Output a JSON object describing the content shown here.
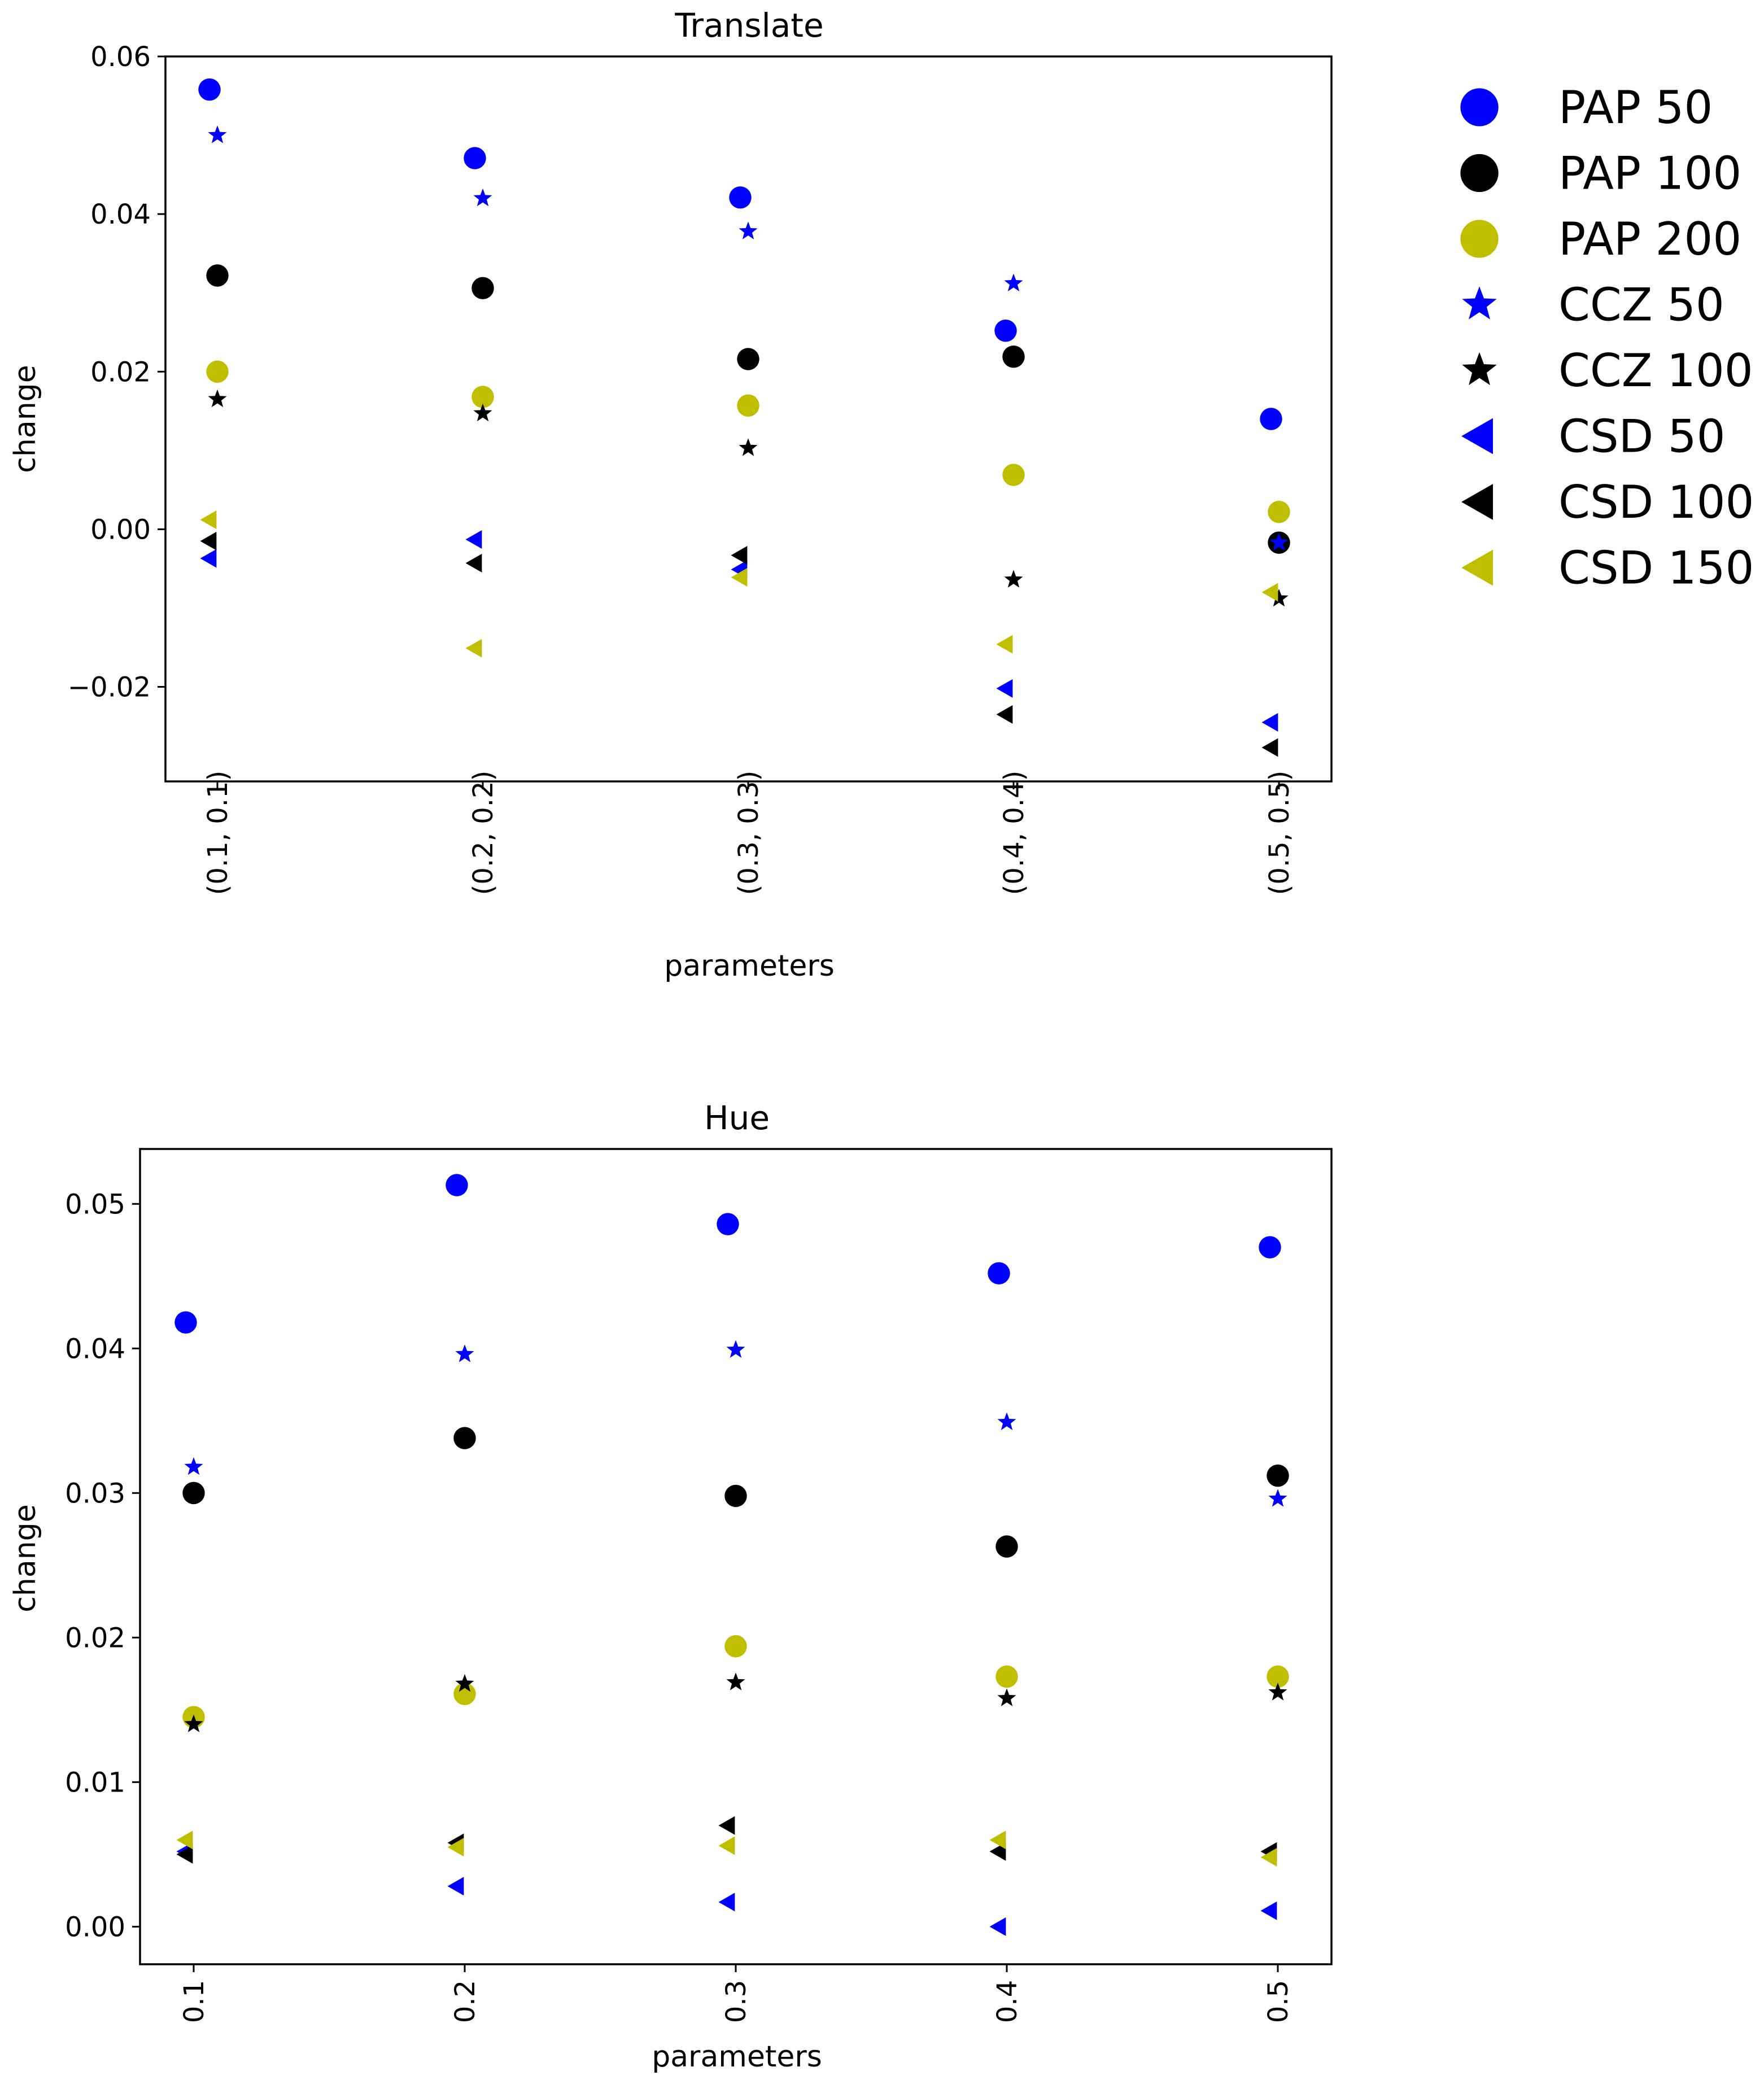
{
  "chart_data": [
    {
      "type": "scatter",
      "title": "Translate",
      "xlabel": "parameters",
      "ylabel": "change",
      "categories": [
        "(0.1, 0.1)",
        "(0.2, 0.2)",
        "(0.3, 0.3)",
        "(0.4, 0.4)",
        "(0.5, 0.5)"
      ],
      "ylim": [
        -0.032,
        0.06
      ],
      "yticks": [
        -0.02,
        0.0,
        0.02,
        0.04,
        0.06
      ],
      "ytick_labels": [
        "−0.02",
        "0.00",
        "0.02",
        "0.04",
        "0.06"
      ],
      "series": [
        {
          "name": "PAP 50",
          "color": "#0000ff",
          "marker": "circle",
          "values": [
            0.0558,
            0.0471,
            0.0421,
            0.0252,
            0.014
          ]
        },
        {
          "name": "PAP 100",
          "color": "#000000",
          "marker": "circle",
          "values": [
            0.0322,
            0.0306,
            0.0216,
            0.0219,
            -0.0017
          ]
        },
        {
          "name": "PAP 200",
          "color": "#bfbf00",
          "marker": "circle",
          "values": [
            0.02,
            0.0168,
            0.0157,
            0.0069,
            0.0022
          ]
        },
        {
          "name": "CCZ 50",
          "color": "#0000ff",
          "marker": "star",
          "values": [
            0.05,
            0.042,
            0.0378,
            0.0312,
            -0.0017
          ]
        },
        {
          "name": "CCZ 100",
          "color": "#000000",
          "marker": "star",
          "values": [
            0.0165,
            0.0147,
            0.0103,
            -0.0064,
            -0.0088
          ]
        },
        {
          "name": "CSD 50",
          "color": "#0000ff",
          "marker": "triangle-left",
          "values": [
            -0.0037,
            -0.0013,
            -0.0051,
            -0.0202,
            -0.0245
          ]
        },
        {
          "name": "CSD 100",
          "color": "#000000",
          "marker": "triangle-left",
          "values": [
            -0.0015,
            -0.0043,
            -0.0033,
            -0.0235,
            -0.0277
          ]
        },
        {
          "name": "CSD 150",
          "color": "#bfbf00",
          "marker": "triangle-left",
          "values": [
            0.0012,
            -0.0151,
            -0.0061,
            -0.0146,
            -0.008
          ]
        }
      ]
    },
    {
      "type": "scatter",
      "title": "Hue",
      "xlabel": "parameters",
      "ylabel": "change",
      "categories": [
        "0.1",
        "0.2",
        "0.3",
        "0.4",
        "0.5"
      ],
      "ylim": [
        -0.0026,
        0.0538
      ],
      "yticks": [
        0.0,
        0.01,
        0.02,
        0.03,
        0.04,
        0.05
      ],
      "ytick_labels": [
        "0.00",
        "0.01",
        "0.02",
        "0.03",
        "0.04",
        "0.05"
      ],
      "series": [
        {
          "name": "PAP 50",
          "color": "#0000ff",
          "marker": "circle",
          "values": [
            0.0418,
            0.0513,
            0.0486,
            0.0452,
            0.047
          ]
        },
        {
          "name": "PAP 100",
          "color": "#000000",
          "marker": "circle",
          "values": [
            0.03,
            0.0338,
            0.0298,
            0.0263,
            0.0312
          ]
        },
        {
          "name": "PAP 200",
          "color": "#bfbf00",
          "marker": "circle",
          "values": [
            0.0145,
            0.0161,
            0.0194,
            0.0173,
            0.0173
          ]
        },
        {
          "name": "CCZ 50",
          "color": "#0000ff",
          "marker": "star",
          "values": [
            0.0318,
            0.0396,
            0.0399,
            0.0349,
            0.0296
          ]
        },
        {
          "name": "CCZ 100",
          "color": "#000000",
          "marker": "star",
          "values": [
            0.014,
            0.0168,
            0.0169,
            0.0158,
            0.0162
          ]
        },
        {
          "name": "CSD 50",
          "color": "#0000ff",
          "marker": "triangle-left",
          "values": [
            0.0052,
            0.0028,
            0.0017,
            0.0,
            0.0011
          ]
        },
        {
          "name": "CSD 100",
          "color": "#000000",
          "marker": "triangle-left",
          "values": [
            0.005,
            0.0058,
            0.007,
            0.0052,
            0.0052
          ]
        },
        {
          "name": "CSD 150",
          "color": "#bfbf00",
          "marker": "triangle-left",
          "values": [
            0.006,
            0.0055,
            0.0056,
            0.006,
            0.0048
          ]
        }
      ]
    }
  ],
  "legend": [
    {
      "label": "PAP 50",
      "color": "#0000ff",
      "marker": "circle"
    },
    {
      "label": "PAP 100",
      "color": "#000000",
      "marker": "circle"
    },
    {
      "label": "PAP 200",
      "color": "#bfbf00",
      "marker": "circle"
    },
    {
      "label": "CCZ 50",
      "color": "#0000ff",
      "marker": "star"
    },
    {
      "label": "CCZ 100",
      "color": "#000000",
      "marker": "star"
    },
    {
      "label": "CSD 50",
      "color": "#0000ff",
      "marker": "triangle-left"
    },
    {
      "label": "CSD 100",
      "color": "#000000",
      "marker": "triangle-left"
    },
    {
      "label": "CSD 150",
      "color": "#bfbf00",
      "marker": "triangle-left"
    }
  ]
}
